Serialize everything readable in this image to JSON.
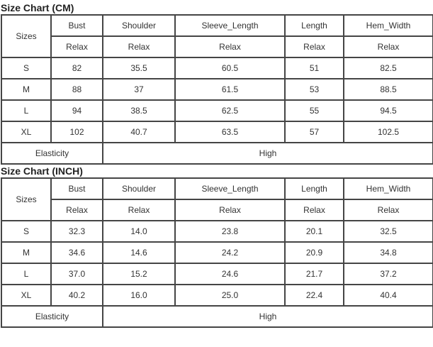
{
  "tables": [
    {
      "title": "Size Chart (CM)",
      "sizes_label": "Sizes",
      "columns": [
        "Bust",
        "Shoulder",
        "Sleeve_Length",
        "Length",
        "Hem_Width"
      ],
      "sub": [
        "Relax",
        "Relax",
        "Relax",
        "Relax",
        "Relax"
      ],
      "rows": [
        [
          "S",
          "82",
          "35.5",
          "60.5",
          "51",
          "82.5"
        ],
        [
          "M",
          "88",
          "37",
          "61.5",
          "53",
          "88.5"
        ],
        [
          "L",
          "94",
          "38.5",
          "62.5",
          "55",
          "94.5"
        ],
        [
          "XL",
          "102",
          "40.7",
          "63.5",
          "57",
          "102.5"
        ]
      ],
      "elasticity_label": "Elasticity",
      "elasticity_value": "High"
    },
    {
      "title": "Size Chart (INCH)",
      "sizes_label": "Sizes",
      "columns": [
        "Bust",
        "Shoulder",
        "Sleeve_Length",
        "Length",
        "Hem_Width"
      ],
      "sub": [
        "Relax",
        "Relax",
        "Relax",
        "Relax",
        "Relax"
      ],
      "rows": [
        [
          "S",
          "32.3",
          "14.0",
          "23.8",
          "20.1",
          "32.5"
        ],
        [
          "M",
          "34.6",
          "14.6",
          "24.2",
          "20.9",
          "34.8"
        ],
        [
          "L",
          "37.0",
          "15.2",
          "24.6",
          "21.7",
          "37.2"
        ],
        [
          "XL",
          "40.2",
          "16.0",
          "25.0",
          "22.4",
          "40.4"
        ]
      ],
      "elasticity_label": "Elasticity",
      "elasticity_value": "High"
    }
  ]
}
